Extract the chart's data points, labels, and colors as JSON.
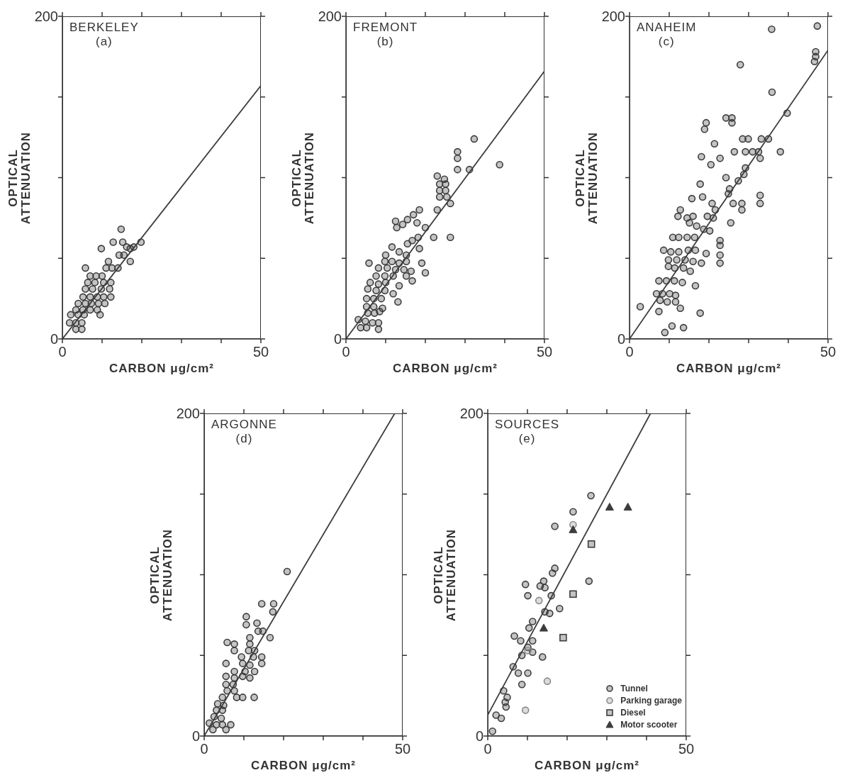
{
  "chart_data": [
    {
      "type": "scatter",
      "title": "BERKELEY",
      "subtitle": "(a)",
      "xlabel": "CARBON μg/cm²",
      "ylabel": "OPTICAL\nATTENUATION",
      "xlim": [
        0,
        50
      ],
      "ylim": [
        0,
        200
      ],
      "xticks": [
        {
          "value": 0,
          "label": "0"
        },
        {
          "value": 10,
          "label": null
        },
        {
          "value": 20,
          "label": null
        },
        {
          "value": 30,
          "label": null
        },
        {
          "value": 40,
          "label": null
        },
        {
          "value": 50,
          "label": "50"
        }
      ],
      "yticks": [
        {
          "value": 0,
          "label": "0"
        },
        {
          "value": 50,
          "label": null
        },
        {
          "value": 100,
          "label": null
        },
        {
          "value": 150,
          "label": null
        },
        {
          "value": 200,
          "label": "200"
        }
      ],
      "marker": "circle",
      "series": [
        {
          "color": "#3c3c3c",
          "x": [
            14.8,
            12.8,
            9.8,
            19.8,
            15.2,
            16.2,
            17.1,
            18,
            14.3,
            15.5,
            17.1,
            5.8,
            11.6,
            11,
            12.5,
            14,
            7,
            8.5,
            10,
            6.4,
            8.2,
            10.4,
            12.2,
            5.8,
            7.6,
            9.8,
            11.9,
            5.2,
            7,
            8.8,
            10.4,
            12.2,
            4,
            5.8,
            7.3,
            9.1,
            10.7,
            3.4,
            5.2,
            7,
            8.8,
            2.1,
            4,
            5.5,
            9.5,
            1.8,
            3.4,
            4.9,
            3.4,
            4.9
          ],
          "values": [
            68,
            60,
            56,
            60,
            60,
            57,
            56,
            57,
            52,
            52,
            48,
            44,
            48,
            44,
            44,
            44,
            39,
            39,
            39,
            35,
            35,
            35,
            35,
            31,
            31,
            31,
            31,
            26,
            26,
            26,
            26,
            26,
            22,
            22,
            22,
            22,
            22,
            18,
            18,
            18,
            18,
            15,
            15,
            15,
            15,
            10,
            10,
            10,
            6,
            6
          ]
        },
        {
          "type": "line",
          "color": "#3c3c3c",
          "marker": "none",
          "x": [
            0,
            50
          ],
          "values": [
            0,
            157
          ]
        }
      ]
    },
    {
      "type": "scatter",
      "title": "FREMONT",
      "subtitle": "(b)",
      "xlabel": "CARBON μg/cm²",
      "ylabel": "OPTICAL\nATTENUATION",
      "xlim": [
        0,
        50
      ],
      "ylim": [
        0,
        200
      ],
      "xticks": [
        {
          "value": 0,
          "label": "0"
        },
        {
          "value": 10,
          "label": null
        },
        {
          "value": 20,
          "label": null
        },
        {
          "value": 30,
          "label": null
        },
        {
          "value": 40,
          "label": null
        },
        {
          "value": 50,
          "label": "50"
        }
      ],
      "yticks": [
        {
          "value": 0,
          "label": "0"
        },
        {
          "value": 50,
          "label": null
        },
        {
          "value": 100,
          "label": null
        },
        {
          "value": 150,
          "label": null
        },
        {
          "value": 200,
          "label": "200"
        }
      ],
      "marker": "circle",
      "series": [
        {
          "color": "#3c3c3c",
          "x": [
            32.3,
            38.7,
            28.1,
            28.1,
            28.1,
            31.1,
            23,
            24.8,
            23.6,
            25.1,
            23.6,
            25.1,
            23.6,
            25.4,
            26.3,
            23,
            12.5,
            12.8,
            14.3,
            15.5,
            17,
            18.5,
            17.9,
            20,
            22.1,
            26.3,
            18.2,
            16.7,
            15.5,
            18.5,
            5.8,
            19.1,
            20,
            11.6,
            13.4,
            15.2,
            10,
            9.8,
            11.6,
            13.4,
            15.2,
            8.2,
            10.4,
            12.5,
            14.6,
            16.4,
            7.6,
            9.8,
            11.9,
            15.2,
            16.7,
            6.1,
            8.2,
            10,
            13.4,
            5.5,
            7.6,
            9.8,
            11.9,
            13.1,
            5.2,
            7,
            8.9,
            5.2,
            7,
            9.2,
            5.5,
            7.2,
            8.5,
            3.1,
            4.9,
            6.7,
            8.2,
            3.7,
            5.2,
            8.2
          ],
          "values": [
            124,
            108,
            116,
            112,
            105,
            105,
            101,
            99,
            96,
            96,
            92,
            92,
            88,
            88,
            84,
            80,
            73,
            69,
            71,
            74,
            77,
            80,
            72,
            69,
            63,
            63,
            63,
            61,
            59,
            56,
            47,
            47,
            41,
            57,
            54,
            52,
            52,
            48,
            48,
            47,
            48,
            44,
            44,
            43,
            43,
            42,
            39,
            39,
            39,
            39,
            36,
            35,
            34,
            35,
            33,
            31,
            30,
            30,
            28,
            23,
            25,
            25,
            25,
            20,
            20,
            19,
            16,
            16,
            17,
            12,
            11,
            10,
            10,
            7,
            7,
            6
          ]
        },
        {
          "type": "line",
          "color": "#3c3c3c",
          "marker": "none",
          "x": [
            0,
            50
          ],
          "values": [
            0,
            166
          ]
        }
      ]
    },
    {
      "type": "scatter",
      "title": "ANAHEIM",
      "subtitle": "(c)",
      "xlabel": "CARBON μg/cm²",
      "ylabel": "OPTICAL\nATTENUATION",
      "xlim": [
        0,
        50
      ],
      "ylim": [
        0,
        200
      ],
      "xticks": [
        {
          "value": 0,
          "label": "0"
        },
        {
          "value": 10,
          "label": null
        },
        {
          "value": 20,
          "label": null
        },
        {
          "value": 30,
          "label": null
        },
        {
          "value": 40,
          "label": null
        },
        {
          "value": 50,
          "label": "50"
        }
      ],
      "yticks": [
        {
          "value": 0,
          "label": "0"
        },
        {
          "value": 50,
          "label": null
        },
        {
          "value": 100,
          "label": null
        },
        {
          "value": 150,
          "label": null
        },
        {
          "value": 200,
          "label": "200"
        }
      ],
      "marker": "circle",
      "series": [
        {
          "color": "#3c3c3c",
          "x": [
            35.8,
            47.3,
            46.9,
            46.9,
            46.6,
            27.9,
            35.9,
            39.7,
            24.3,
            25.8,
            25.8,
            19.3,
            18.9,
            21.4,
            28.5,
            29.9,
            33.2,
            35,
            26.4,
            29.2,
            31,
            32.5,
            32.9,
            38,
            18.1,
            20.5,
            22.8,
            29.2,
            28.8,
            27.4,
            24.3,
            17.8,
            25.2,
            24.9,
            26.1,
            28.3,
            28.3,
            32.9,
            32.9,
            18.4,
            20.8,
            21.6,
            15.7,
            12.8,
            12.2,
            14.5,
            16,
            19.6,
            21.1,
            25.5,
            15.1,
            16.9,
            18.7,
            20.2,
            10.9,
            12.4,
            14.5,
            16.4,
            22.8,
            22.8,
            22.8,
            22.8,
            8.6,
            10.4,
            12.4,
            14.8,
            16.6,
            19.3,
            9.8,
            11.9,
            14,
            16,
            18.1,
            9.8,
            11.4,
            13.6,
            15.3,
            16.6,
            7.4,
            9.3,
            11.3,
            13.3,
            6.8,
            8.3,
            10.1,
            11.6,
            7.7,
            9.5,
            11.6,
            12.8,
            7.4,
            2.7,
            17.8,
            8.9,
            10.7,
            13.6
          ],
          "values": [
            192,
            194,
            178,
            175,
            172,
            170,
            153,
            140,
            137,
            137,
            134,
            134,
            130,
            121,
            124,
            124,
            124,
            124,
            116,
            116,
            116,
            116,
            112,
            116,
            113,
            108,
            112,
            106,
            102,
            98,
            100,
            96,
            93,
            90,
            84,
            84,
            80,
            89,
            84,
            88,
            84,
            80,
            87,
            80,
            76,
            75,
            76,
            76,
            75,
            72,
            72,
            70,
            68,
            67,
            63,
            63,
            63,
            63,
            61,
            58,
            52,
            47,
            55,
            54,
            54,
            55,
            55,
            53,
            49,
            49,
            49,
            48,
            47,
            45,
            44,
            44,
            42,
            33,
            36,
            36,
            36,
            35,
            28,
            28,
            28,
            27,
            24,
            23,
            23,
            19,
            17,
            20,
            16,
            4,
            8,
            7
          ]
        },
        {
          "type": "line",
          "color": "#3c3c3c",
          "marker": "none",
          "x": [
            0,
            50
          ],
          "values": [
            0,
            179
          ]
        }
      ]
    },
    {
      "type": "scatter",
      "title": "ARGONNE",
      "subtitle": "(d)",
      "xlabel": "CARBON μg/cm²",
      "ylabel": "OPTICAL\nATTENUATION",
      "xlim": [
        0,
        50
      ],
      "ylim": [
        0,
        200
      ],
      "xticks": [
        {
          "value": 0,
          "label": "0"
        },
        {
          "value": 10,
          "label": null
        },
        {
          "value": 20,
          "label": null
        },
        {
          "value": 30,
          "label": null
        },
        {
          "value": 40,
          "label": null
        },
        {
          "value": 50,
          "label": "50"
        }
      ],
      "yticks": [
        {
          "value": 0,
          "label": "0"
        },
        {
          "value": 50,
          "label": null
        },
        {
          "value": 100,
          "label": null
        },
        {
          "value": 150,
          "label": null
        },
        {
          "value": 200,
          "label": "200"
        }
      ],
      "marker": "circle",
      "series": [
        {
          "color": "#3c3c3c",
          "x": [
            20.9,
            14.5,
            17.5,
            17.3,
            10.6,
            10.6,
            13.3,
            14.8,
            13.6,
            16.6,
            11.5,
            11.5,
            5.8,
            7.6,
            7.6,
            11.2,
            12.7,
            9.4,
            12.4,
            14.5,
            14.5,
            5.5,
            9.7,
            11.5,
            7.6,
            10.3,
            12.7,
            5.5,
            7.6,
            9.7,
            11.5,
            5.5,
            7.3,
            5.8,
            7.6,
            8.2,
            9.7,
            12.6,
            4.6,
            3.4,
            4.9,
            3.1,
            4.6,
            2.5,
            4.3,
            1.3,
            3.1,
            4.6,
            6.7,
            2.2,
            5.5
          ],
          "values": [
            102,
            82,
            82,
            77,
            74,
            69,
            70,
            65,
            65,
            61,
            61,
            57,
            58,
            57,
            53,
            53,
            53,
            49,
            49,
            49,
            45,
            45,
            45,
            44,
            40,
            40,
            40,
            37,
            36,
            37,
            36,
            32,
            32,
            28,
            28,
            24,
            24,
            24,
            24,
            20,
            19,
            16,
            16,
            12,
            11,
            8,
            7,
            7,
            7,
            4,
            4
          ]
        },
        {
          "type": "line",
          "color": "#3c3c3c",
          "marker": "none",
          "x": [
            0,
            48
          ],
          "values": [
            0,
            200
          ]
        }
      ]
    },
    {
      "type": "scatter",
      "title": "SOURCES",
      "subtitle": "(e)",
      "xlabel": "CARBON μg/cm²",
      "ylabel": "OPTICAL\nATTENUATION",
      "xlim": [
        0,
        50
      ],
      "ylim": [
        0,
        200
      ],
      "xticks": [
        {
          "value": 0,
          "label": "0"
        },
        {
          "value": 10,
          "label": null
        },
        {
          "value": 20,
          "label": null
        },
        {
          "value": 30,
          "label": null
        },
        {
          "value": 40,
          "label": null
        },
        {
          "value": 50,
          "label": "50"
        }
      ],
      "yticks": [
        {
          "value": 0,
          "label": "0"
        },
        {
          "value": 50,
          "label": null
        },
        {
          "value": 100,
          "label": null
        },
        {
          "value": 150,
          "label": null
        },
        {
          "value": 200,
          "label": "200"
        }
      ],
      "marker": "circle",
      "legend": "bottom right",
      "series": [
        {
          "name": "Tunnel",
          "color": "#3c3c3c",
          "x": [
            26,
            21.5,
            16.9,
            16.9,
            16.3,
            25.5,
            9.5,
            10.1,
            14.1,
            13.2,
            14.4,
            16,
            18.1,
            14.4,
            15.6,
            11.3,
            10.4,
            6.7,
            8.3,
            11.3,
            10.1,
            11.3,
            8.6,
            13.8,
            6.4,
            7.7,
            10.1,
            8.6,
            4,
            4.9,
            4.4,
            4.6,
            2.1,
            3.4,
            1.2
          ],
          "values": [
            149,
            139,
            130,
            104,
            101,
            96,
            94,
            87,
            96,
            93,
            92,
            87,
            79,
            77,
            76,
            71,
            67,
            62,
            59,
            59,
            55,
            52,
            50,
            49,
            43,
            39,
            39,
            32,
            28,
            24,
            21,
            18,
            13,
            11,
            3
          ]
        },
        {
          "name": "Parking garage",
          "color": "#8a8a8a",
          "x": [
            21.5,
            15,
            9.5,
            12.9,
            10.1
          ],
          "values": [
            131,
            34,
            16,
            84,
            53
          ]
        },
        {
          "name": "Diesel",
          "color": "#3c3c3c",
          "marker": "square",
          "x": [
            26.1,
            21.5,
            19
          ],
          "values": [
            119,
            88,
            61
          ]
        },
        {
          "name": "Motor scooter",
          "color": "#3c3c3c",
          "marker": "triangle",
          "x": [
            30.7,
            35.3,
            21.5,
            14.1
          ],
          "values": [
            142,
            142,
            128,
            67
          ]
        },
        {
          "type": "line",
          "color": "#3c3c3c",
          "marker": "none",
          "x": [
            0,
            41
          ],
          "values": [
            13,
            200
          ]
        }
      ]
    }
  ]
}
